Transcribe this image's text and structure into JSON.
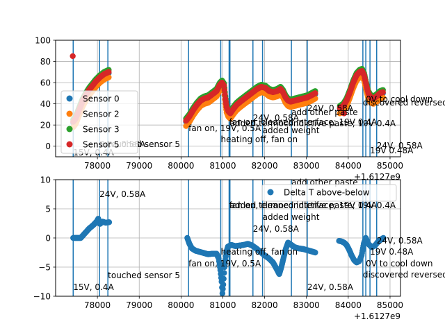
{
  "chart_data": [
    {
      "type": "scatter",
      "xlim": [
        1612777000,
        1612785250
      ],
      "ylim": [
        -10,
        100
      ],
      "xticks": [
        1612778000,
        1612779000,
        1612780000,
        1612781000,
        1612782000,
        1612783000,
        1612784000,
        1612785000
      ],
      "xtick_labels": [
        "78000",
        "79000",
        "80000",
        "81000",
        "82000",
        "83000",
        "84000",
        "85000"
      ],
      "yticks": [
        0,
        20,
        40,
        60,
        80,
        100
      ],
      "ytick_labels": [
        "0",
        "20",
        "40",
        "60",
        "80",
        "100"
      ],
      "x_offset_label": "+1.6127e9",
      "grid": true,
      "legend": "left",
      "series": [
        {
          "name": "Sensor 0",
          "color": "#1f77b4"
        },
        {
          "name": "Sensor 2",
          "color": "#ff7f0e"
        },
        {
          "name": "Sensor 3",
          "color": "#2ca02c"
        },
        {
          "name": "Sensor 5",
          "color": "#d62728"
        }
      ],
      "extra_points": [
        {
          "x": 1612777410,
          "y": 85,
          "color": "#d62728"
        },
        {
          "x": 1612783900,
          "y": 31,
          "color": "#d62728"
        }
      ],
      "annotations": [
        {
          "x": 1612777420,
          "text": "15V, 0.4A"
        },
        {
          "x": 1612778050,
          "text": "24V, 0.58A"
        },
        {
          "x": 1612778250,
          "text": "touched sensor 5"
        },
        {
          "x": 1612780180,
          "text": "fan on, 19V, 0.5A"
        },
        {
          "x": 1612780950,
          "text": "heating off, fan on"
        },
        {
          "x": 1612781150,
          "text": "fan on, cleaned interface; 19V 0.4A"
        },
        {
          "x": 1612781170,
          "text": "added termocondictive paste; 19V 0.4A"
        },
        {
          "x": 1612781720,
          "text": "24V, 0.58A"
        },
        {
          "x": 1612781950,
          "text": "added weight"
        },
        {
          "x": 1612782640,
          "text": "add other paste"
        },
        {
          "x": 1612783020,
          "text": "24V, 0.58A"
        },
        {
          "x": 1612784350,
          "text": "discovered reversed sensors"
        },
        {
          "x": 1612784420,
          "text": "0V to cool down"
        },
        {
          "x": 1612784520,
          "text": "19V 0.48A"
        },
        {
          "x": 1612784680,
          "text": "24V, 0.58A"
        }
      ]
    },
    {
      "type": "scatter",
      "xlim": [
        1612777000,
        1612785250
      ],
      "ylim": [
        -10,
        10
      ],
      "xticks": [
        1612778000,
        1612779000,
        1612780000,
        1612781000,
        1612782000,
        1612783000,
        1612784000,
        1612785000
      ],
      "xtick_labels": [
        "78000",
        "79000",
        "80000",
        "81000",
        "82000",
        "83000",
        "84000",
        "85000"
      ],
      "yticks": [
        -10,
        -5,
        0,
        5,
        10
      ],
      "ytick_labels": [
        "−10",
        "−5",
        "0",
        "5",
        "10"
      ],
      "x_offset_label": "+1.6127e9",
      "grid": true,
      "legend": "top-right",
      "series": [
        {
          "name": "Delta T above-below",
          "color": "#1f77b4"
        }
      ],
      "annotations": [
        {
          "x": 1612777420,
          "text": "15V, 0.4A"
        },
        {
          "x": 1612778050,
          "text": "24V, 0.58A"
        },
        {
          "x": 1612778250,
          "text": "touched sensor 5"
        },
        {
          "x": 1612780180,
          "text": "fan on, 19V, 0.5A"
        },
        {
          "x": 1612780950,
          "text": "heating off, fan on"
        },
        {
          "x": 1612781150,
          "text": "fan on, cleaned interface; 19V 0.4A"
        },
        {
          "x": 1612781170,
          "text": "added termocondictive paste; 19V 0.4A"
        },
        {
          "x": 1612781720,
          "text": "24V, 0.58A"
        },
        {
          "x": 1612781950,
          "text": "added weight"
        },
        {
          "x": 1612782640,
          "text": "add other paste"
        },
        {
          "x": 1612783020,
          "text": "24V, 0.58A"
        },
        {
          "x": 1612784350,
          "text": "discovered reversed sensors"
        },
        {
          "x": 1612784420,
          "text": "0V to cool down"
        },
        {
          "x": 1612784520,
          "text": "19V 0.48A"
        },
        {
          "x": 1612784680,
          "text": "24V, 0.58A"
        }
      ]
    }
  ],
  "curves": {
    "temperature_segments": [
      [
        [
          1612777420,
          22
        ],
        [
          1612777480,
          25
        ],
        [
          1612777560,
          33
        ],
        [
          1612777640,
          41
        ],
        [
          1612777720,
          47
        ],
        [
          1612777800,
          52
        ],
        [
          1612777880,
          56
        ],
        [
          1612777960,
          60
        ],
        [
          1612778060,
          64
        ],
        [
          1612778160,
          67
        ],
        [
          1612778270,
          69
        ]
      ],
      [
        [
          1612780120,
          23
        ],
        [
          1612780200,
          27
        ],
        [
          1612780290,
          33
        ],
        [
          1612780380,
          38
        ],
        [
          1612780470,
          42
        ],
        [
          1612780560,
          44
        ],
        [
          1612780650,
          45
        ],
        [
          1612780750,
          48
        ],
        [
          1612780850,
          51
        ],
        [
          1612780930,
          57
        ],
        [
          1612780980,
          59
        ],
        [
          1612781030,
          56
        ],
        [
          1612781060,
          44
        ],
        [
          1612781090,
          36
        ],
        [
          1612781130,
          32
        ],
        [
          1612781180,
          30
        ],
        [
          1612781250,
          34
        ],
        [
          1612781330,
          38
        ],
        [
          1612781420,
          41
        ],
        [
          1612781520,
          44
        ],
        [
          1612781620,
          47
        ],
        [
          1612781720,
          50
        ],
        [
          1612781820,
          53
        ],
        [
          1612781920,
          55
        ],
        [
          1612782020,
          54
        ],
        [
          1612782110,
          51
        ],
        [
          1612782200,
          50
        ],
        [
          1612782300,
          51
        ],
        [
          1612782380,
          53
        ],
        [
          1612782440,
          50
        ],
        [
          1612782500,
          45
        ],
        [
          1612782560,
          42
        ],
        [
          1612782620,
          41
        ],
        [
          1612782720,
          42
        ],
        [
          1612782820,
          43
        ],
        [
          1612782920,
          44
        ],
        [
          1612783020,
          45
        ],
        [
          1612783120,
          47
        ],
        [
          1612783210,
          49
        ]
      ],
      [
        [
          1612783800,
          35
        ],
        [
          1612783880,
          37
        ],
        [
          1612783960,
          42
        ],
        [
          1612784040,
          50
        ],
        [
          1612784120,
          59
        ],
        [
          1612784200,
          66
        ],
        [
          1612784270,
          69
        ],
        [
          1612784330,
          70
        ],
        [
          1612784380,
          66
        ],
        [
          1612784430,
          57
        ],
        [
          1612784480,
          49
        ],
        [
          1612784540,
          45
        ],
        [
          1612784600,
          44
        ],
        [
          1612784680,
          46
        ],
        [
          1612784760,
          49
        ],
        [
          1612784830,
          50
        ]
      ]
    ],
    "temperature_offsets": [
      0,
      -4,
      3,
      1
    ],
    "delta_segments": [
      [
        [
          1612777420,
          0
        ],
        [
          1612777600,
          0
        ],
        [
          1612777700,
          0.8
        ],
        [
          1612777800,
          1.6
        ],
        [
          1612777900,
          2.2
        ],
        [
          1612777980,
          2.8
        ],
        [
          1612778020,
          3.3
        ],
        [
          1612778060,
          2.4
        ],
        [
          1612778120,
          2.8
        ],
        [
          1612778200,
          2.6
        ],
        [
          1612778280,
          2.7
        ]
      ],
      [
        [
          1612780150,
          0
        ],
        [
          1612780200,
          -1.0
        ],
        [
          1612780260,
          -1.8
        ],
        [
          1612780350,
          -2.2
        ],
        [
          1612780450,
          -2.4
        ],
        [
          1612780550,
          -2.6
        ],
        [
          1612780650,
          -2.8
        ],
        [
          1612780750,
          -2.7
        ],
        [
          1612780850,
          -2.7
        ],
        [
          1612780900,
          -3.5
        ],
        [
          1612780940,
          -5.5
        ],
        [
          1612780970,
          -7.5
        ],
        [
          1612780990,
          -9.5
        ],
        [
          1612781010,
          -8
        ],
        [
          1612781040,
          -5
        ],
        [
          1612781080,
          -2.5
        ],
        [
          1612781120,
          -1.5
        ],
        [
          1612781200,
          -1.2
        ],
        [
          1612781300,
          -1.4
        ],
        [
          1612781400,
          -1.3
        ],
        [
          1612781500,
          -1.2
        ],
        [
          1612781600,
          -1.0
        ],
        [
          1612781700,
          -1.3
        ],
        [
          1612781800,
          -1.8
        ],
        [
          1612781900,
          -2.4
        ],
        [
          1612782000,
          -3.0
        ],
        [
          1612782100,
          -3.5
        ],
        [
          1612782200,
          -4.2
        ],
        [
          1612782300,
          -5.5
        ],
        [
          1612782350,
          -6.2
        ],
        [
          1612782400,
          -5.0
        ],
        [
          1612782450,
          -3.5
        ],
        [
          1612782500,
          -2.0
        ],
        [
          1612782560,
          -0.8
        ],
        [
          1612782640,
          -1.2
        ],
        [
          1612782720,
          -1.6
        ],
        [
          1612782820,
          -1.8
        ],
        [
          1612782920,
          -1.9
        ],
        [
          1612783020,
          -2.1
        ],
        [
          1612783120,
          -2.3
        ],
        [
          1612783210,
          -2.5
        ]
      ],
      [
        [
          1612783780,
          -0.5
        ],
        [
          1612783840,
          -0.6
        ],
        [
          1612783900,
          -0.8
        ],
        [
          1612783960,
          -1.2
        ],
        [
          1612784020,
          -2.0
        ],
        [
          1612784080,
          -3.0
        ],
        [
          1612784140,
          -3.8
        ],
        [
          1612784200,
          -4.2
        ],
        [
          1612784260,
          -4.0
        ],
        [
          1612784320,
          -3.0
        ],
        [
          1612784370,
          -1.0
        ],
        [
          1612784420,
          0.0
        ],
        [
          1612784480,
          -1.0
        ],
        [
          1612784560,
          -1.6
        ],
        [
          1612784640,
          -1.3
        ],
        [
          1612784720,
          -0.6
        ],
        [
          1612784800,
          -0.2
        ],
        [
          1612784840,
          0.0
        ]
      ]
    ]
  }
}
